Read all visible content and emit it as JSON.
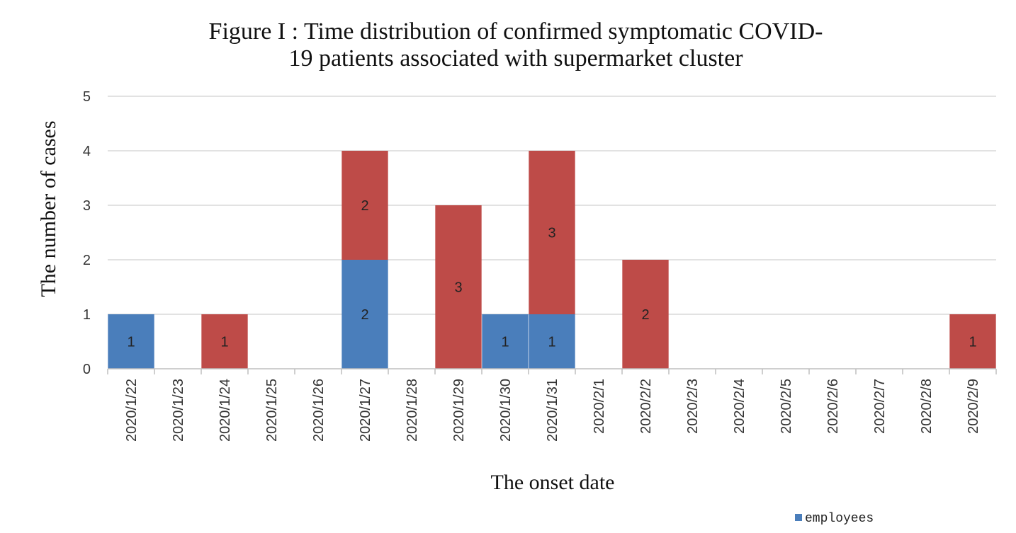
{
  "chart_data": {
    "type": "bar",
    "stacked": true,
    "title_lines": [
      "Figure I : Time distribution of confirmed symptomatic COVID-",
      "19 patients associated with supermarket cluster"
    ],
    "xlabel": "The onset date",
    "ylabel": "The number of cases",
    "categories": [
      "2020/1/22",
      "2020/1/23",
      "2020/1/24",
      "2020/1/25",
      "2020/1/26",
      "2020/1/27",
      "2020/1/28",
      "2020/1/29",
      "2020/1/30",
      "2020/1/31",
      "2020/2/1",
      "2020/2/2",
      "2020/2/3",
      "2020/2/4",
      "2020/2/5",
      "2020/2/6",
      "2020/2/7",
      "2020/2/8",
      "2020/2/9"
    ],
    "series": [
      {
        "name": "employees",
        "color": "#4a7ebb",
        "values": [
          1,
          0,
          0,
          0,
          0,
          2,
          0,
          0,
          1,
          1,
          0,
          0,
          0,
          0,
          0,
          0,
          0,
          0,
          0
        ]
      },
      {
        "color": "#be4b48",
        "values": [
          0,
          0,
          1,
          0,
          0,
          2,
          0,
          3,
          0,
          3,
          0,
          2,
          0,
          0,
          0,
          0,
          0,
          0,
          1
        ]
      }
    ],
    "ylim": [
      0,
      5
    ],
    "yticks": [
      0,
      1,
      2,
      3,
      4,
      5
    ],
    "grid": true,
    "legend_position": "bottom-right"
  }
}
